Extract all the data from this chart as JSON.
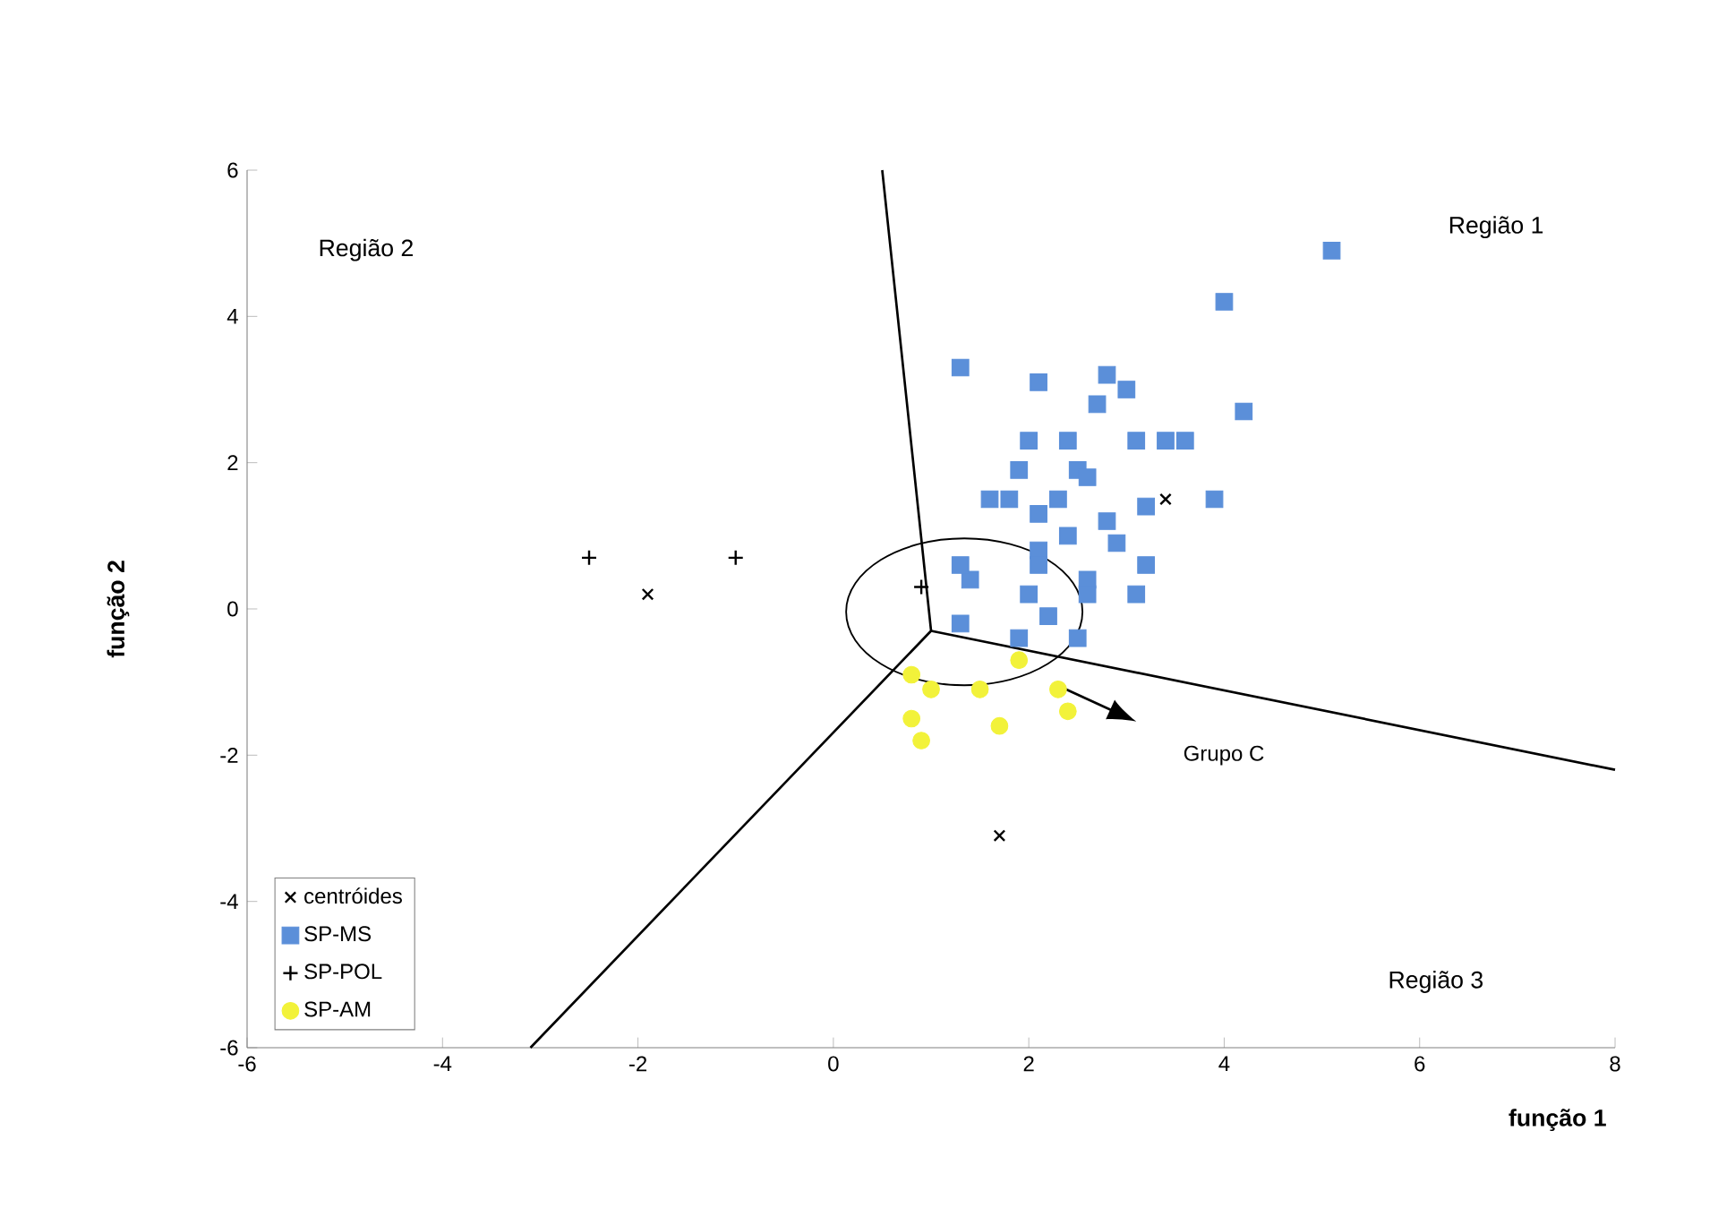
{
  "chart_data": {
    "type": "scatter",
    "xlabel": "função 1",
    "ylabel": "função 2",
    "xlim": [
      -6,
      8
    ],
    "ylim": [
      -6,
      6
    ],
    "xticks": [
      -6,
      -4,
      -2,
      0,
      2,
      4,
      6,
      8
    ],
    "yticks": [
      -6,
      -4,
      -2,
      0,
      2,
      4,
      6
    ],
    "legend": "bottom left",
    "series": [
      {
        "name": "centróides",
        "color": "#000000",
        "marker": "cross",
        "x": [
          -1.9,
          1.7,
          3.4
        ],
        "values": [
          0.2,
          -3.1,
          1.5
        ]
      },
      {
        "name": "SP-MS",
        "color": "#5b8fd9",
        "marker": "square",
        "x": [
          5.1,
          4.0,
          4.2,
          3.9,
          1.3,
          2.1,
          2.8,
          3.0,
          2.7,
          3.1,
          3.4,
          3.6,
          2.0,
          2.4,
          1.9,
          2.5,
          2.6,
          1.6,
          1.8,
          2.3,
          2.1,
          3.2,
          2.8,
          2.9,
          2.1,
          2.4,
          3.2,
          3.1,
          2.1,
          1.4,
          1.3,
          2.6,
          2.6,
          2.2,
          1.3,
          2.5,
          2.0,
          1.9
        ],
        "values": [
          4.9,
          4.2,
          2.7,
          1.5,
          3.3,
          3.1,
          3.2,
          3.0,
          2.8,
          2.3,
          2.3,
          2.3,
          2.3,
          2.3,
          1.9,
          1.9,
          1.8,
          1.5,
          1.5,
          1.5,
          1.3,
          1.4,
          1.2,
          0.9,
          0.8,
          1.0,
          0.6,
          0.2,
          0.6,
          0.4,
          0.6,
          0.4,
          0.2,
          -0.1,
          -0.2,
          -0.4,
          0.2,
          -0.4
        ]
      },
      {
        "name": "SP-POL",
        "color": "#000000",
        "marker": "plus",
        "x": [
          -2.5,
          -1.0,
          0.9
        ],
        "values": [
          0.7,
          0.7,
          0.3
        ]
      },
      {
        "name": "SP-AM",
        "color": "#f2f23a",
        "marker": "circle",
        "x": [
          0.8,
          1.0,
          0.8,
          0.9,
          1.5,
          1.7,
          1.9,
          2.4,
          2.3
        ],
        "values": [
          -0.9,
          -1.1,
          -1.5,
          -1.8,
          -1.1,
          -1.6,
          -0.7,
          -1.4,
          -1.1
        ]
      },
      {
        "type": "line",
        "color": "#000000",
        "x": [
          0.5,
          1.0,
          -3.1
        ],
        "values": [
          6.0,
          -0.3,
          -6.0
        ]
      },
      {
        "type": "line",
        "color": "#000000",
        "x": [
          1.0,
          8.0
        ],
        "values": [
          -0.3,
          -2.2
        ]
      }
    ],
    "annotations": [
      "Região 1",
      "Região 2",
      "Região 3",
      "Grupo C"
    ]
  }
}
